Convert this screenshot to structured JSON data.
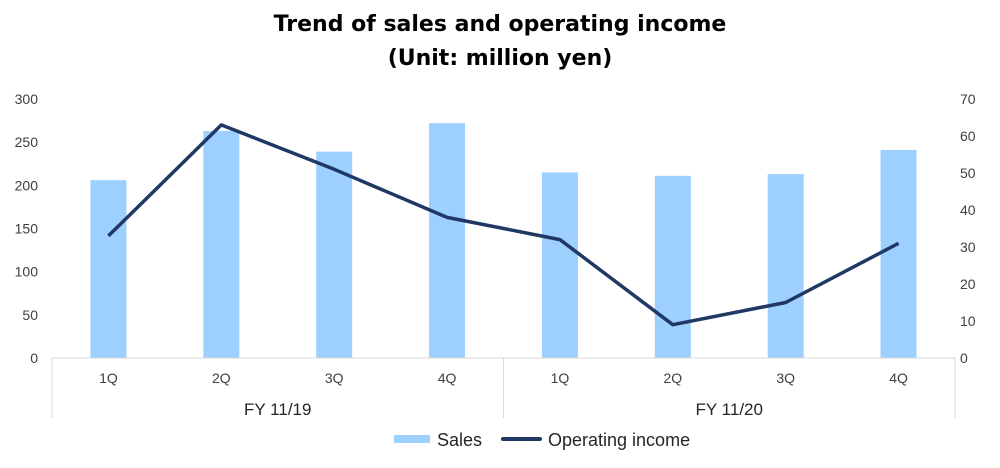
{
  "chart_data": {
    "type": "bar+line",
    "title": [
      "Trend of sales and operating income",
      "(Unit: million yen)"
    ],
    "categories": [
      "1Q",
      "2Q",
      "3Q",
      "4Q",
      "1Q",
      "2Q",
      "3Q",
      "4Q"
    ],
    "groups": [
      {
        "label": "FY 11/19",
        "span": 4
      },
      {
        "label": "FY 11/20",
        "span": 4
      }
    ],
    "series": [
      {
        "name": "Sales",
        "type": "bar",
        "axis": "left",
        "color": "#9DCFFF",
        "values": [
          206,
          263,
          239,
          272,
          215,
          211,
          213,
          241
        ]
      },
      {
        "name": "Operating income",
        "type": "line",
        "axis": "right",
        "color": "#1F3864",
        "values": [
          33,
          63,
          51,
          38,
          32,
          9,
          15,
          31
        ]
      }
    ],
    "y_left": {
      "ylim": [
        0,
        300
      ],
      "ticks": [
        0,
        50,
        100,
        150,
        200,
        250,
        300
      ]
    },
    "y_right": {
      "ylim": [
        0,
        70
      ],
      "ticks": [
        0,
        10,
        20,
        30,
        40,
        50,
        60,
        70
      ]
    },
    "grid": false,
    "legend": "bottom-center"
  }
}
